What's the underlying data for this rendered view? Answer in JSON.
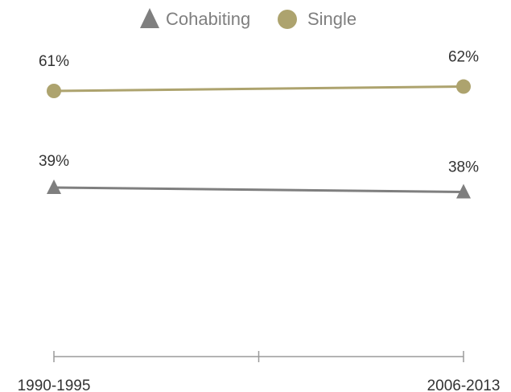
{
  "chart_data": {
    "type": "line",
    "categories": [
      "1990-1995",
      "2006-2013"
    ],
    "series": [
      {
        "name": "Cohabiting",
        "values": [
          39,
          38
        ],
        "color": "#7f7f7f",
        "marker": "triangle"
      },
      {
        "name": "Single",
        "values": [
          61,
          62
        ],
        "color": "#ada36e",
        "marker": "circle"
      }
    ],
    "data_labels": {
      "Cohabiting": [
        "39%",
        "38%"
      ],
      "Single": [
        "61%",
        "62%"
      ]
    },
    "title": "",
    "xlabel": "",
    "ylabel": "",
    "ylim": [
      0,
      80
    ],
    "grid": false,
    "legend": "top-center"
  }
}
